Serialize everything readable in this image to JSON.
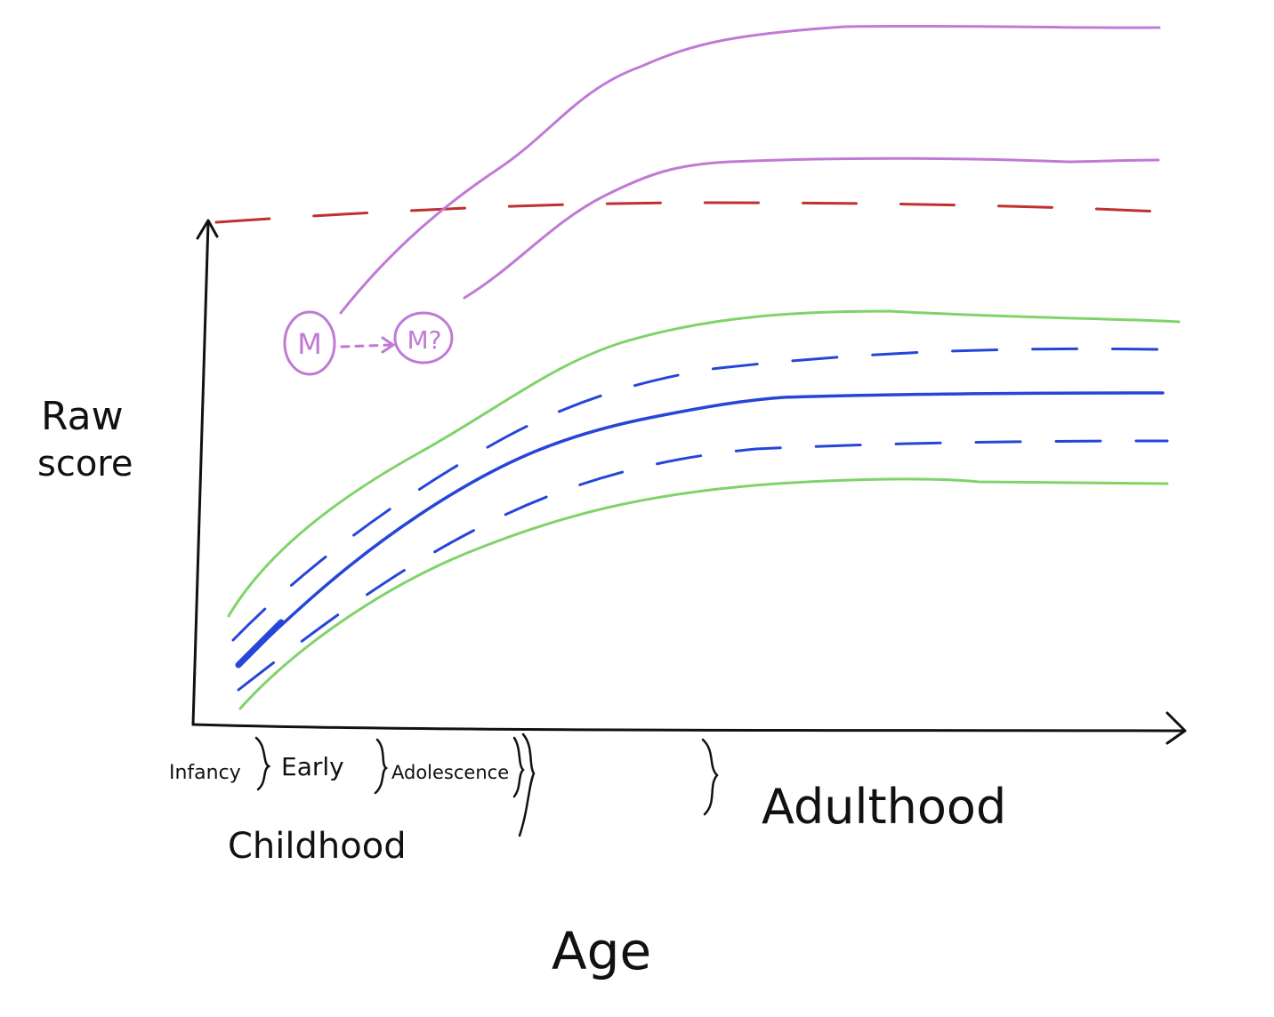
{
  "diagram": {
    "y_axis_label_line1": "Raw",
    "y_axis_label_line2": "score",
    "x_axis_label": "Age",
    "stages": {
      "infancy": "Infancy",
      "early_line1": "Early",
      "early_line2": "Childhood",
      "adolescence": "Adolescence",
      "adulthood": "Adulthood"
    },
    "markers": {
      "m": "M",
      "m_question": "M?"
    },
    "colors": {
      "axis": "#111111",
      "ceiling_dashed": "#c03030",
      "mean_line": "#2646d8",
      "sd_dashed": "#2646d8",
      "outer_band": "#7fd36a",
      "upper_curves": "#c07ad6"
    }
  }
}
